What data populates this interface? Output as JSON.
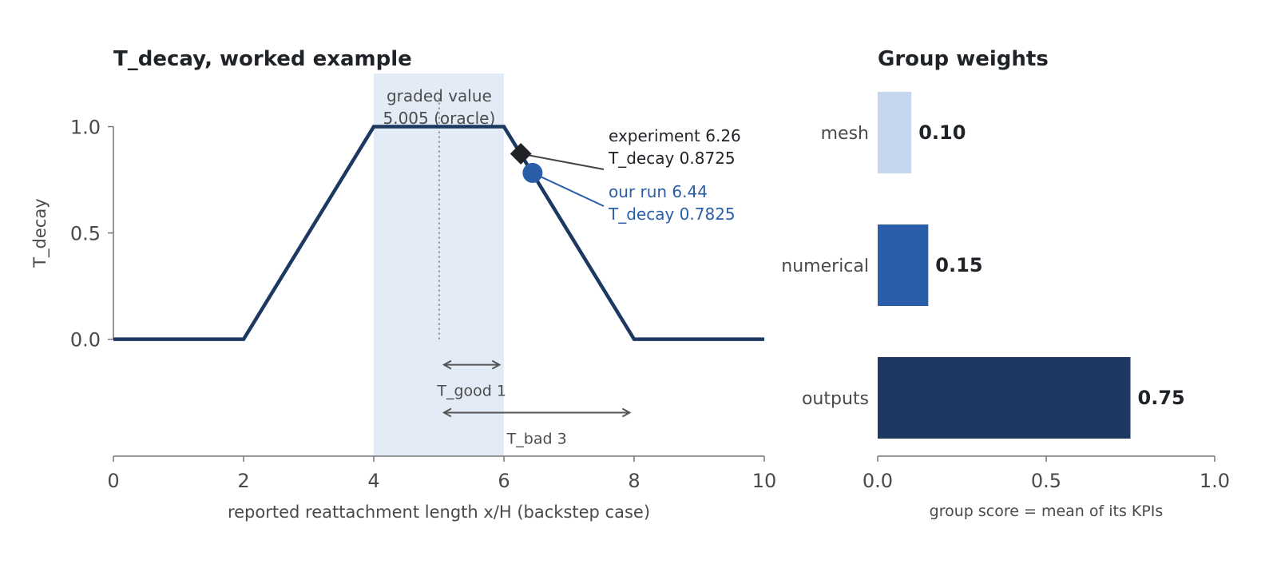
{
  "chart_data": [
    {
      "type": "line",
      "title": "T_decay, worked example",
      "xlabel": "reported reattachment length x/H (backstep case)",
      "ylabel": "T_decay",
      "xlim": [
        0,
        10
      ],
      "ylim": [
        -0.55,
        1.25
      ],
      "x_ticks": [
        "0",
        "2",
        "4",
        "6",
        "8",
        "10"
      ],
      "y_ticks": [
        "0.0",
        "0.5",
        "1.0"
      ],
      "x": [
        0,
        2,
        4,
        6,
        8,
        10
      ],
      "y": [
        0,
        0,
        1,
        1,
        0,
        0
      ],
      "grid": false,
      "shaded_band": {
        "x": [
          4,
          6
        ]
      },
      "oracle": {
        "x": 5.005,
        "label_line1": "graded value",
        "label_line2": "5.005 (oracle)"
      },
      "points": [
        {
          "name": "experiment",
          "x": 6.26,
          "y": 0.8725,
          "marker": "diamond",
          "color": "#1f2328",
          "label_line1": "experiment 6.26",
          "label_line2": "T_decay 0.8725"
        },
        {
          "name": "our run",
          "x": 6.44,
          "y": 0.7825,
          "marker": "circle",
          "color": "#2a5ea8",
          "label_line1": "our run 6.44",
          "label_line2": "T_decay 0.7825"
        }
      ],
      "spans": [
        {
          "label": "T_good 1",
          "x_from": 5.005,
          "x_to": 6.005,
          "y": -0.12,
          "label_y": -0.24
        },
        {
          "label": "T_bad 3",
          "x_from": 5.005,
          "x_to": 8.005,
          "y": -0.345,
          "label_y": -0.465
        }
      ]
    },
    {
      "type": "bar",
      "orientation": "horizontal",
      "title": "Group weights",
      "xlabel": "group score = mean of its KPIs",
      "xlim": [
        0,
        1
      ],
      "x_ticks": [
        "0.0",
        "0.5",
        "1.0"
      ],
      "categories": [
        "mesh",
        "numerical",
        "outputs"
      ],
      "values": [
        0.1,
        0.15,
        0.75
      ],
      "value_labels": [
        "0.10",
        "0.15",
        "0.75"
      ],
      "colors": [
        "#c6d6ee",
        "#2a5ea8",
        "#1d3961"
      ]
    }
  ]
}
